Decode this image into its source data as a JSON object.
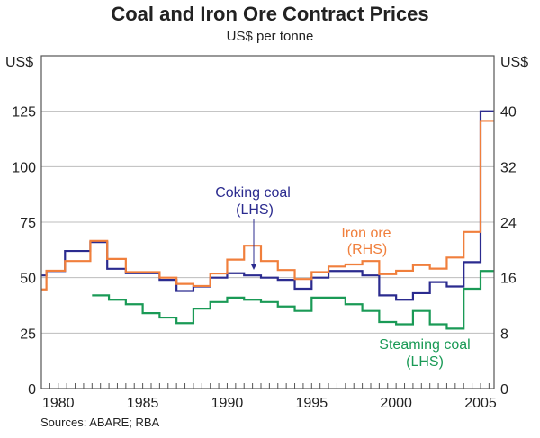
{
  "chart_data": {
    "type": "line",
    "step": true,
    "title": "Coal and Iron Ore Contract Prices",
    "subtitle": "US$ per tonne",
    "source": "Sources: ABARE; RBA",
    "left_axis": {
      "unit": "US$",
      "range": [
        0,
        150
      ],
      "ticks": [
        0,
        25,
        50,
        75,
        100,
        125
      ]
    },
    "right_axis": {
      "unit": "US$",
      "range": [
        0,
        48
      ],
      "ticks": [
        0,
        8,
        16,
        24,
        32,
        40
      ]
    },
    "x_axis": {
      "range": [
        1979,
        2005.8
      ],
      "tick_labels": [
        "1980",
        "1985",
        "1990",
        "1995",
        "2000",
        "2005"
      ],
      "tick_values": [
        1980,
        1985,
        1990,
        1995,
        2000,
        2005
      ],
      "minor_ticks_per_year": 2
    },
    "grid": true,
    "series": [
      {
        "name": "Coking coal",
        "axis_note": "(LHS)",
        "axis": "left",
        "color": "#2b2b8f",
        "x": [
          1979,
          1979.3,
          1980.4,
          1981.9,
          1982.9,
          1984.0,
          1986.0,
          1987.0,
          1988.0,
          1989.0,
          1990.0,
          1991.0,
          1992.0,
          1993.0,
          1994.0,
          1995.0,
          1996.0,
          1998.0,
          1999.0,
          2000.0,
          2001.0,
          2002.0,
          2003.0,
          2004.0,
          2005.0,
          2005.8
        ],
        "values": [
          51,
          53,
          62,
          66,
          54,
          52,
          49,
          44,
          46,
          50,
          52,
          51,
          50,
          49,
          45,
          50,
          53,
          51,
          42,
          40,
          43,
          48,
          46,
          57,
          125,
          125
        ]
      },
      {
        "name": "Iron ore",
        "axis_note": "(RHS)",
        "axis": "right",
        "color": "#f07f3c",
        "x": [
          1979,
          1979.3,
          1980.4,
          1981.9,
          1982.9,
          1984.0,
          1986.0,
          1987.0,
          1988.0,
          1989.0,
          1990.0,
          1991.0,
          1992.0,
          1993.0,
          1994.0,
          1995.0,
          1996.0,
          1997.0,
          1998.0,
          1999.0,
          2000.0,
          2001.0,
          2002.0,
          2003.0,
          2004.0,
          2005.0,
          2005.8
        ],
        "values": [
          14.3,
          17.0,
          18.4,
          21.3,
          18.7,
          16.8,
          16.0,
          15.1,
          14.8,
          16.6,
          18.6,
          20.6,
          18.4,
          17.1,
          15.8,
          16.8,
          17.6,
          17.9,
          18.4,
          16.5,
          17.0,
          17.8,
          17.3,
          18.9,
          22.6,
          38.6,
          38.6
        ]
      },
      {
        "name": "Steaming coal",
        "axis_note": "(LHS)",
        "axis": "left",
        "color": "#1a9a56",
        "x": [
          1982.0,
          1983.0,
          1984.0,
          1985.0,
          1986.0,
          1987.0,
          1988.0,
          1989.0,
          1990.0,
          1991.0,
          1992.0,
          1993.0,
          1994.0,
          1995.0,
          1997.0,
          1998.0,
          1999.0,
          2000.0,
          2001.0,
          2002.0,
          2003.0,
          2004.0,
          2005.0,
          2005.8
        ],
        "values": [
          42,
          40,
          38,
          34,
          32,
          29.5,
          36,
          39,
          41,
          40,
          39,
          37,
          35,
          41,
          38,
          35,
          30,
          29,
          35,
          29,
          27,
          45,
          53,
          53
        ]
      }
    ],
    "annotations": [
      {
        "text": "Coking coal",
        "sub": "(LHS)",
        "color": "#2b2b8f",
        "arrow": true
      },
      {
        "text": "Iron ore",
        "sub": "(RHS)",
        "color": "#f07f3c"
      },
      {
        "text": "Steaming coal",
        "sub": "(LHS)",
        "color": "#1a9a56"
      }
    ]
  }
}
